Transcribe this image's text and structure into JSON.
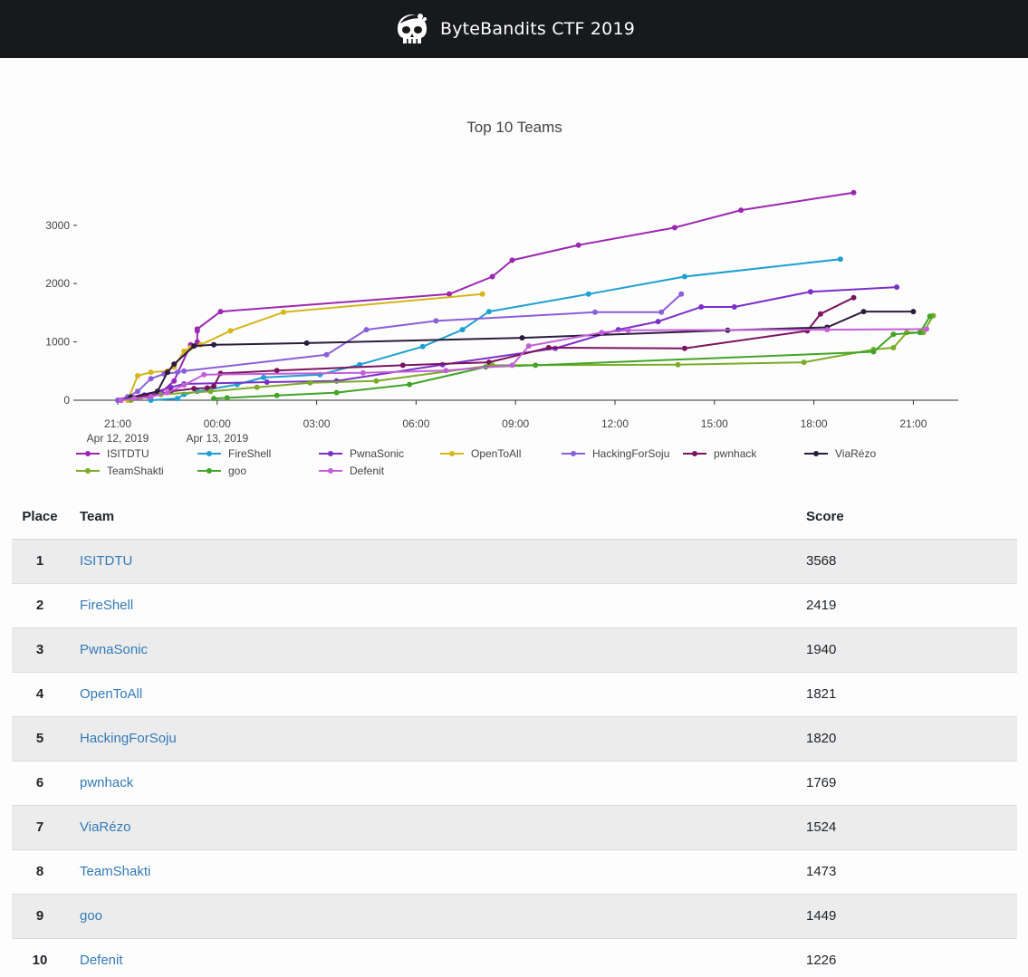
{
  "navbar": {
    "title": "ByteBandits CTF 2019",
    "logo": "skull-pirate-icon"
  },
  "chart_data": {
    "type": "line",
    "title": "Top 10 Teams",
    "xlabel": "",
    "ylabel": "",
    "x_ticks": [
      {
        "label": "21:00",
        "sublabel": "Apr 12, 2019"
      },
      {
        "label": "00:00",
        "sublabel": "Apr 13, 2019"
      },
      {
        "label": "03:00",
        "sublabel": ""
      },
      {
        "label": "06:00",
        "sublabel": ""
      },
      {
        "label": "09:00",
        "sublabel": ""
      },
      {
        "label": "12:00",
        "sublabel": ""
      },
      {
        "label": "15:00",
        "sublabel": ""
      },
      {
        "label": "18:00",
        "sublabel": ""
      },
      {
        "label": "21:00",
        "sublabel": ""
      }
    ],
    "x_unit": "hours since Apr 12, 2019 21:00",
    "x_range": [
      -1.2,
      25.7
    ],
    "y_ticks": [
      0,
      1000,
      2000,
      3000
    ],
    "ylim": [
      0,
      3700
    ],
    "series": [
      {
        "name": "ISITDTU",
        "color": "#9c27b0",
        "points": [
          [
            0.1,
            0
          ],
          [
            0.3,
            30
          ],
          [
            0.7,
            60
          ],
          [
            1.0,
            90
          ],
          [
            1.3,
            130
          ],
          [
            1.7,
            330
          ],
          [
            2.2,
            950
          ],
          [
            2.4,
            960
          ],
          [
            2.4,
            1000
          ],
          [
            2.4,
            1190
          ],
          [
            2.4,
            1220
          ],
          [
            3.1,
            1520
          ],
          [
            10.0,
            1820
          ],
          [
            11.3,
            2120
          ],
          [
            11.9,
            2400
          ],
          [
            13.9,
            2660
          ],
          [
            16.8,
            2960
          ],
          [
            18.8,
            3260
          ],
          [
            22.2,
            3560
          ]
        ]
      },
      {
        "name": "FireShell",
        "color": "#1e9fd1",
        "points": [
          [
            1.0,
            0
          ],
          [
            1.8,
            30
          ],
          [
            2.0,
            100
          ],
          [
            2.4,
            150
          ],
          [
            2.8,
            190
          ],
          [
            3.6,
            270
          ],
          [
            4.4,
            390
          ],
          [
            6.1,
            440
          ],
          [
            7.3,
            610
          ],
          [
            9.2,
            920
          ],
          [
            10.4,
            1210
          ],
          [
            11.2,
            1520
          ],
          [
            14.2,
            1820
          ],
          [
            17.1,
            2120
          ],
          [
            21.8,
            2420
          ]
        ]
      },
      {
        "name": "PwnaSonic",
        "color": "#7b2fc9",
        "points": [
          [
            0.0,
            0
          ],
          [
            0.4,
            40
          ],
          [
            0.8,
            90
          ],
          [
            1.2,
            150
          ],
          [
            1.6,
            220
          ],
          [
            2.0,
            280
          ],
          [
            4.5,
            310
          ],
          [
            6.6,
            330
          ],
          [
            9.8,
            610
          ],
          [
            13.2,
            890
          ],
          [
            15.1,
            1210
          ],
          [
            16.3,
            1350
          ],
          [
            17.6,
            1600
          ],
          [
            18.6,
            1600
          ],
          [
            20.9,
            1860
          ],
          [
            23.5,
            1940
          ]
        ]
      },
      {
        "name": "OpenToAll",
        "color": "#d4b61a",
        "points": [
          [
            0.3,
            0
          ],
          [
            0.6,
            420
          ],
          [
            1.0,
            480
          ],
          [
            1.5,
            500
          ],
          [
            1.7,
            570
          ],
          [
            2.0,
            840
          ],
          [
            2.2,
            900
          ],
          [
            2.5,
            950
          ],
          [
            3.4,
            1190
          ],
          [
            5.0,
            1510
          ],
          [
            11.0,
            1820
          ]
        ]
      },
      {
        "name": "HackingForSoju",
        "color": "#8a5fd8",
        "points": [
          [
            0.0,
            0
          ],
          [
            0.3,
            60
          ],
          [
            0.6,
            150
          ],
          [
            1.0,
            370
          ],
          [
            1.4,
            450
          ],
          [
            1.8,
            480
          ],
          [
            2.0,
            500
          ],
          [
            6.3,
            780
          ],
          [
            7.5,
            1210
          ],
          [
            9.6,
            1360
          ],
          [
            14.4,
            1510
          ],
          [
            16.4,
            1510
          ],
          [
            17.0,
            1820
          ]
        ]
      },
      {
        "name": "pwnhack",
        "color": "#7b1460",
        "points": [
          [
            0.1,
            0
          ],
          [
            0.5,
            40
          ],
          [
            0.9,
            70
          ],
          [
            1.6,
            150
          ],
          [
            2.3,
            200
          ],
          [
            2.7,
            210
          ],
          [
            2.9,
            240
          ],
          [
            3.1,
            460
          ],
          [
            4.8,
            510
          ],
          [
            8.6,
            600
          ],
          [
            11.2,
            650
          ],
          [
            13.0,
            900
          ],
          [
            17.1,
            890
          ],
          [
            20.8,
            1190
          ],
          [
            21.2,
            1480
          ],
          [
            22.2,
            1760
          ]
        ]
      },
      {
        "name": "ViaRézo",
        "color": "#2d1b3d",
        "points": [
          [
            0.1,
            0
          ],
          [
            0.4,
            50
          ],
          [
            1.2,
            150
          ],
          [
            1.5,
            480
          ],
          [
            1.7,
            620
          ],
          [
            2.3,
            930
          ],
          [
            2.9,
            950
          ],
          [
            5.7,
            980
          ],
          [
            12.2,
            1070
          ],
          [
            18.4,
            1200
          ],
          [
            21.4,
            1250
          ],
          [
            22.5,
            1520
          ],
          [
            24.0,
            1520
          ]
        ]
      },
      {
        "name": "TeamShakti",
        "color": "#7cab28",
        "points": [
          [
            0.4,
            0
          ],
          [
            1.3,
            100
          ],
          [
            2.8,
            150
          ],
          [
            4.2,
            220
          ],
          [
            5.8,
            300
          ],
          [
            7.8,
            330
          ],
          [
            11.3,
            600
          ],
          [
            16.9,
            610
          ],
          [
            20.7,
            650
          ],
          [
            22.8,
            870
          ],
          [
            23.4,
            900
          ],
          [
            23.8,
            1160
          ],
          [
            24.3,
            1160
          ],
          [
            24.6,
            1450
          ]
        ]
      },
      {
        "name": "goo",
        "color": "#42a428",
        "points": [
          [
            2.9,
            30
          ],
          [
            3.3,
            40
          ],
          [
            4.8,
            80
          ],
          [
            6.6,
            130
          ],
          [
            8.8,
            270
          ],
          [
            11.1,
            570
          ],
          [
            12.6,
            600
          ],
          [
            22.8,
            830
          ],
          [
            23.4,
            1130
          ],
          [
            24.2,
            1160
          ],
          [
            24.5,
            1440
          ]
        ]
      },
      {
        "name": "Defenit",
        "color": "#c45dd8",
        "points": [
          [
            0.1,
            0
          ],
          [
            0.5,
            30
          ],
          [
            1.0,
            60
          ],
          [
            1.5,
            130
          ],
          [
            2.0,
            260
          ],
          [
            2.6,
            440
          ],
          [
            7.4,
            470
          ],
          [
            9.9,
            510
          ],
          [
            11.9,
            600
          ],
          [
            12.4,
            930
          ],
          [
            14.6,
            1160
          ],
          [
            15.4,
            1200
          ],
          [
            21.4,
            1210
          ],
          [
            24.4,
            1220
          ]
        ]
      }
    ]
  },
  "table": {
    "headers": {
      "place": "Place",
      "team": "Team",
      "score": "Score"
    },
    "rows": [
      {
        "place": "1",
        "team": "ISITDTU",
        "score": "3568"
      },
      {
        "place": "2",
        "team": "FireShell",
        "score": "2419"
      },
      {
        "place": "3",
        "team": "PwnaSonic",
        "score": "1940"
      },
      {
        "place": "4",
        "team": "OpenToAll",
        "score": "1821"
      },
      {
        "place": "5",
        "team": "HackingForSoju",
        "score": "1820"
      },
      {
        "place": "6",
        "team": "pwnhack",
        "score": "1769"
      },
      {
        "place": "7",
        "team": "ViaRézo",
        "score": "1524"
      },
      {
        "place": "8",
        "team": "TeamShakti",
        "score": "1473"
      },
      {
        "place": "9",
        "team": "goo",
        "score": "1449"
      },
      {
        "place": "10",
        "team": "Defenit",
        "score": "1226"
      }
    ]
  }
}
